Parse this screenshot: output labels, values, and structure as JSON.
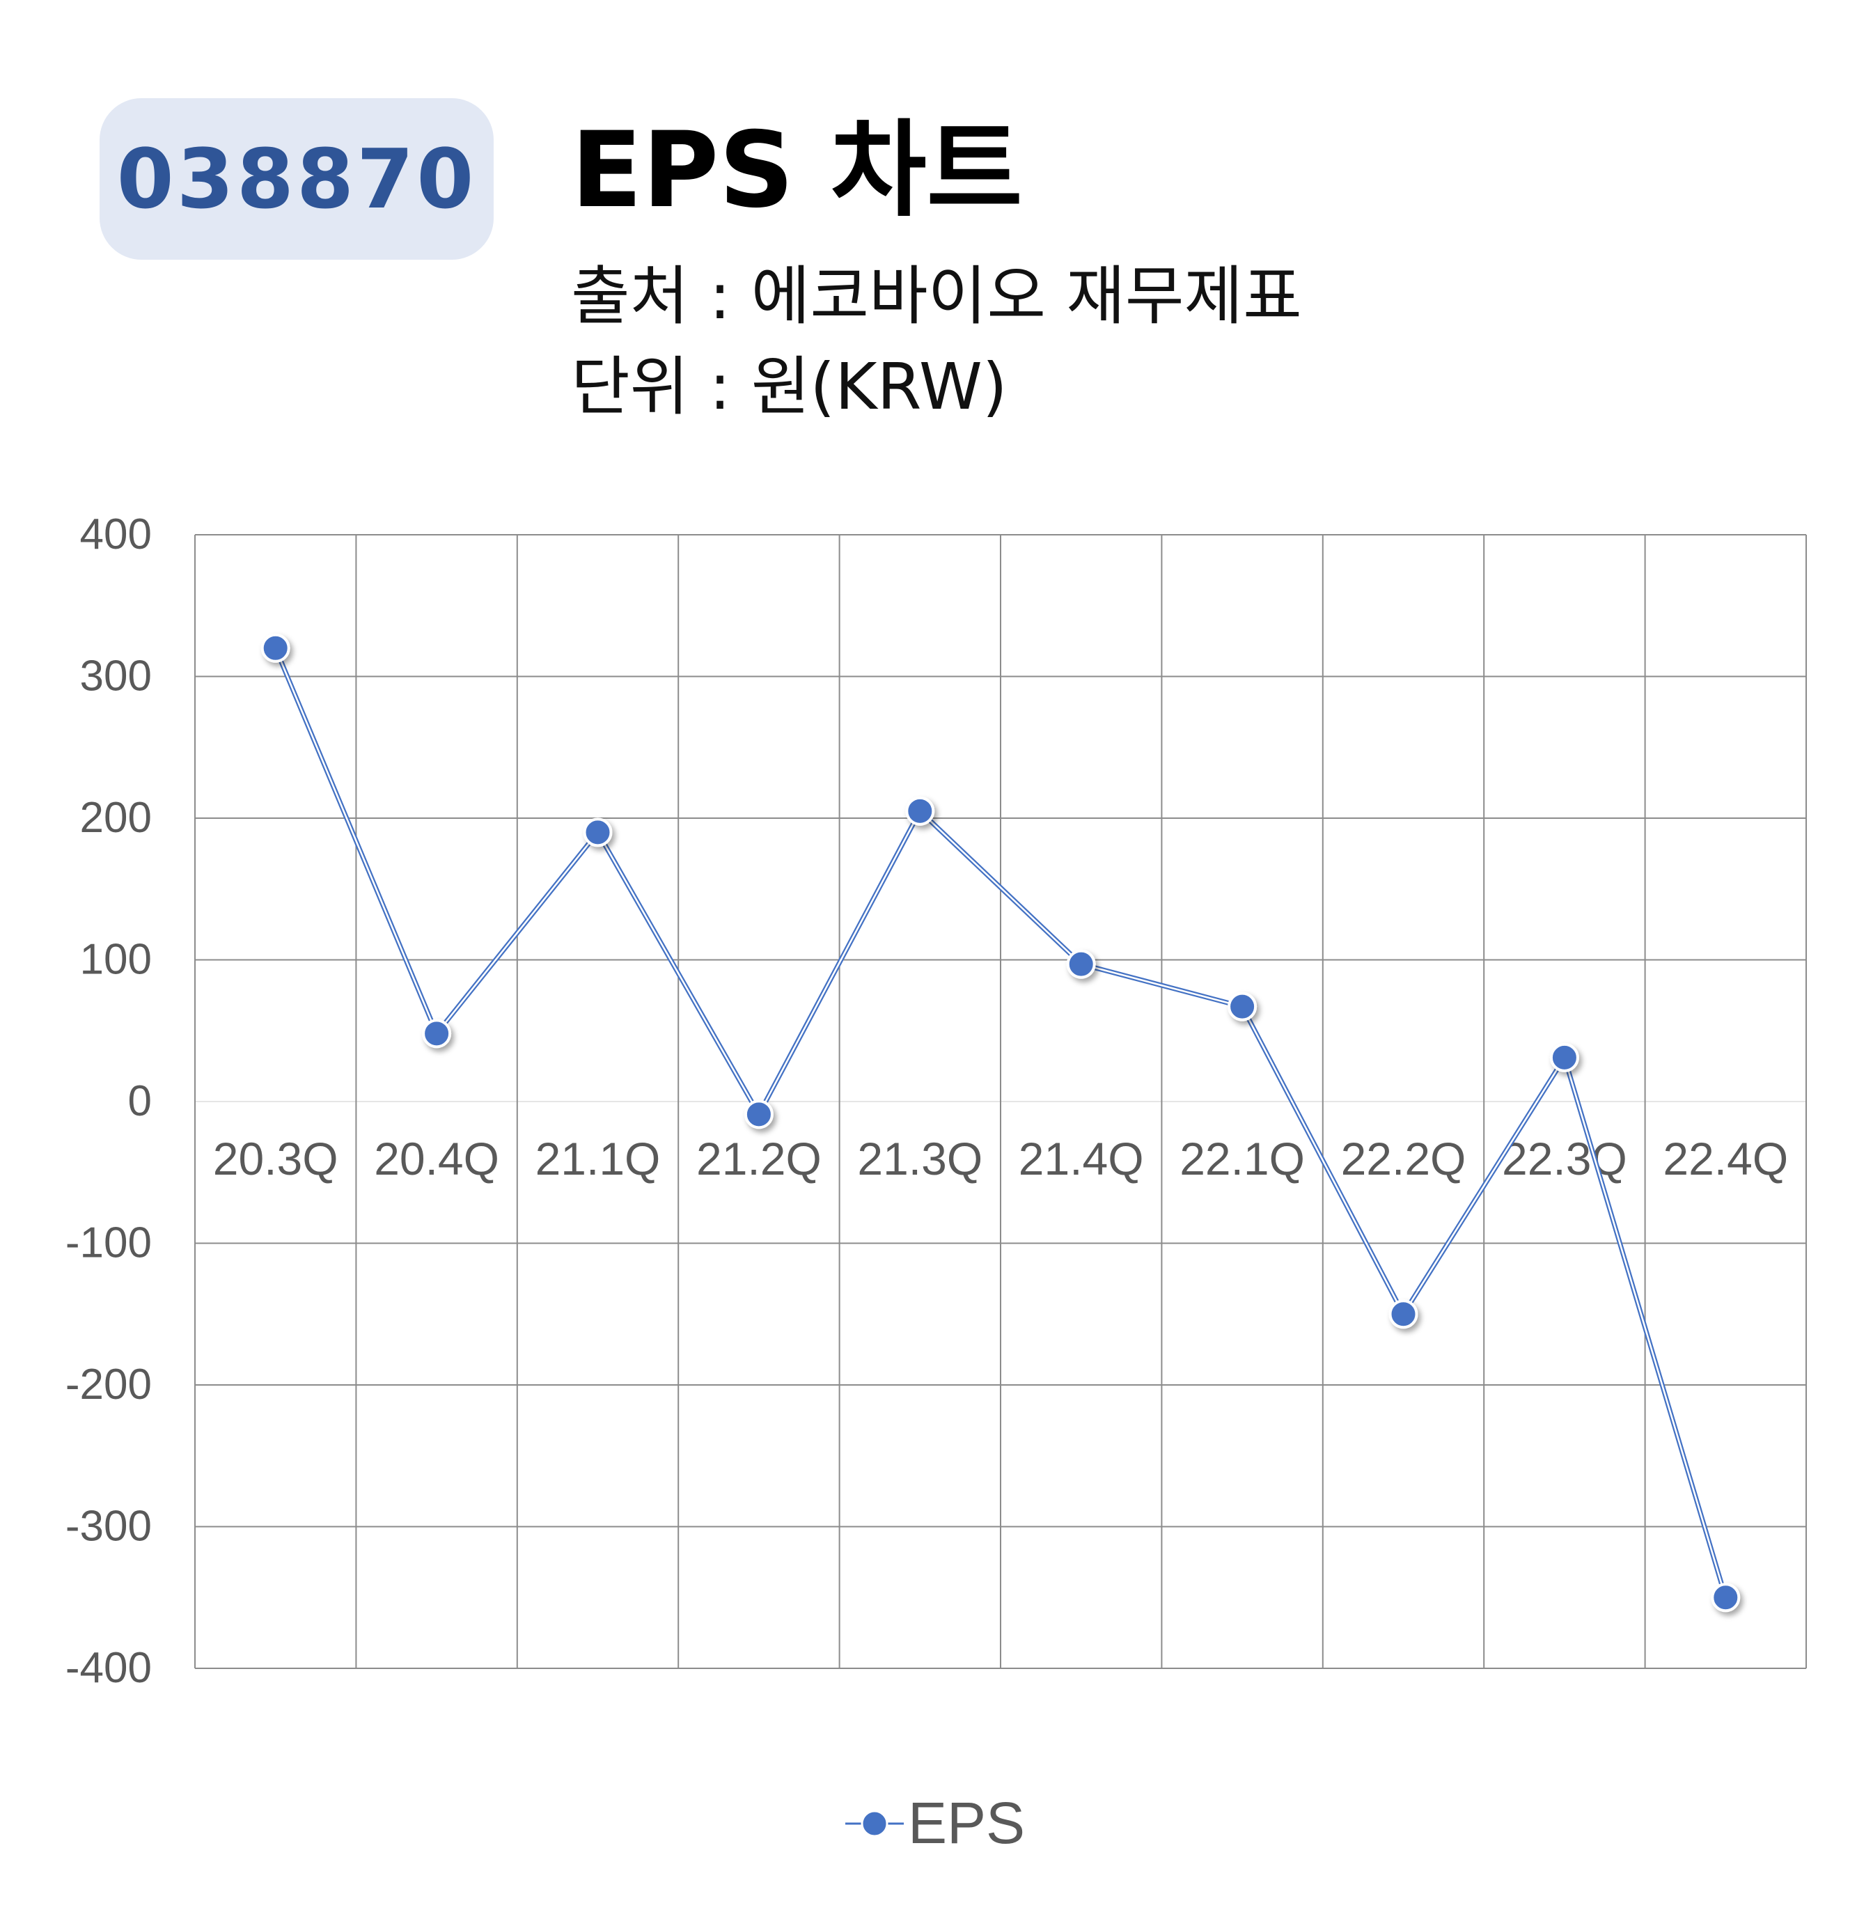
{
  "header": {
    "ticker": "038870",
    "title": "EPS 차트",
    "source": "출처 : 에코바이오 재무제표",
    "unit": "단위 : 원(KRW)"
  },
  "colors": {
    "badge_bg": "#e2e8f4",
    "badge_text": "#2f5597",
    "series": "#4472c4",
    "grid": "#8c8c8c",
    "axis_text": "#595959"
  },
  "chart_data": {
    "type": "line",
    "title": "EPS 차트",
    "categories": [
      "20.3Q",
      "20.4Q",
      "21.1Q",
      "21.2Q",
      "21.3Q",
      "21.4Q",
      "22.1Q",
      "22.2Q",
      "22.3Q",
      "22.4Q"
    ],
    "series": [
      {
        "name": "EPS",
        "values": [
          320,
          48,
          190,
          -9,
          205,
          97,
          67,
          -150,
          31,
          -350
        ]
      }
    ],
    "ylim": [
      -400,
      400
    ],
    "yticks": [
      400,
      300,
      200,
      100,
      0,
      -100,
      -200,
      -300,
      -400
    ],
    "grid": true,
    "legend": "bottom-center"
  }
}
